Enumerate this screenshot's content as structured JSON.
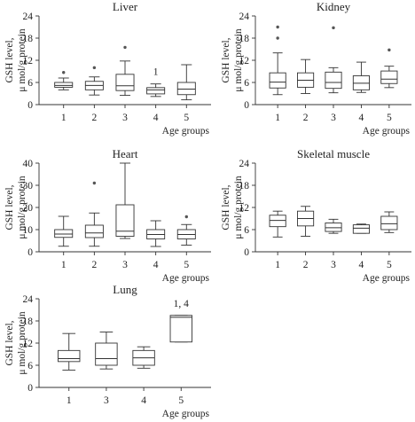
{
  "chart_data": [
    {
      "type": "box",
      "title": "Liver",
      "ylabel": "GSH level,",
      "ylabel2": "μ mol/g protein",
      "xlabel": "Age groups",
      "ylim": [
        0,
        24
      ],
      "yticks": [
        "0",
        "6",
        "12",
        "18",
        "24"
      ],
      "categories": [
        "1",
        "2",
        "3",
        "4",
        "5"
      ],
      "boxes": [
        {
          "min": 4,
          "q1": 4.7,
          "median": 5.2,
          "q3": 6,
          "max": 7.2,
          "outliers": [
            8.7
          ]
        },
        {
          "min": 2.6,
          "q1": 4,
          "median": 5.2,
          "q3": 6.3,
          "max": 7.5,
          "outliers": [
            10
          ]
        },
        {
          "min": 2.5,
          "q1": 3.8,
          "median": 5.1,
          "q3": 8.2,
          "max": 11.8,
          "outliers": [
            15.5
          ]
        },
        {
          "min": 2.2,
          "q1": 2.9,
          "median": 4,
          "q3": 4.6,
          "max": 5.6,
          "outliers": []
        },
        {
          "min": 1.3,
          "q1": 2.7,
          "median": 4.2,
          "q3": 6,
          "max": 10.8,
          "outliers": []
        }
      ],
      "annotations": [
        {
          "text": "1",
          "category": "4"
        }
      ]
    },
    {
      "type": "box",
      "title": "Kidney",
      "ylabel": "GSH level,",
      "ylabel2": "μ mol/g protein",
      "xlabel": "Age groups",
      "ylim": [
        0,
        24
      ],
      "yticks": [
        "0",
        "6",
        "12",
        "18",
        "24"
      ],
      "categories": [
        "1",
        "2",
        "3",
        "4",
        "5"
      ],
      "boxes": [
        {
          "min": 2.7,
          "q1": 4.5,
          "median": 6.1,
          "q3": 8.6,
          "max": 14,
          "outliers": [
            18,
            21
          ]
        },
        {
          "min": 3,
          "q1": 4.7,
          "median": 6.6,
          "q3": 8.6,
          "max": 12.2,
          "outliers": []
        },
        {
          "min": 3.2,
          "q1": 4.4,
          "median": 6,
          "q3": 8.8,
          "max": 10,
          "outliers": [
            20.8
          ]
        },
        {
          "min": 3.3,
          "q1": 4,
          "median": 5.8,
          "q3": 7.8,
          "max": 11.5,
          "outliers": []
        },
        {
          "min": 4.6,
          "q1": 5.7,
          "median": 6.9,
          "q3": 9.1,
          "max": 10.4,
          "outliers": [
            14.8
          ]
        }
      ]
    },
    {
      "type": "box",
      "title": "Heart",
      "ylabel": "GSH level,",
      "ylabel2": "μ mol/g protein",
      "xlabel": "Age groups",
      "ylim": [
        0,
        40
      ],
      "yticks": [
        "0",
        "10",
        "20",
        "30",
        "40"
      ],
      "categories": [
        "1",
        "2",
        "3",
        "4",
        "5"
      ],
      "boxes": [
        {
          "min": 2.5,
          "q1": 6.5,
          "median": 8,
          "q3": 10,
          "max": 16,
          "outliers": []
        },
        {
          "min": 2.5,
          "q1": 6.4,
          "median": 8.5,
          "q3": 12,
          "max": 17.5,
          "outliers": [
            31
          ]
        },
        {
          "min": 6,
          "q1": 7,
          "median": 9.3,
          "q3": 21.2,
          "max": 40,
          "outliers": []
        },
        {
          "min": 2.4,
          "q1": 5.8,
          "median": 7.8,
          "q3": 10,
          "max": 14,
          "outliers": []
        },
        {
          "min": 3,
          "q1": 5.8,
          "median": 7.8,
          "q3": 10,
          "max": 12.3,
          "outliers": [
            15.8
          ]
        }
      ]
    },
    {
      "type": "box",
      "title": "Skeletal muscle",
      "ylabel": "GSH level,",
      "ylabel2": "μ mol/g protein",
      "xlabel": "Age groups",
      "ylim": [
        0,
        24
      ],
      "yticks": [
        "0",
        "6",
        "12",
        "18",
        "24"
      ],
      "categories": [
        "1",
        "2",
        "3",
        "4",
        "5"
      ],
      "boxes": [
        {
          "min": 4,
          "q1": 6.8,
          "median": 8.5,
          "q3": 9.9,
          "max": 11,
          "outliers": []
        },
        {
          "min": 4.2,
          "q1": 7,
          "median": 9,
          "q3": 11,
          "max": 12.3,
          "outliers": []
        },
        {
          "min": 5,
          "q1": 5.5,
          "median": 6.5,
          "q3": 7.8,
          "max": 8.8,
          "outliers": []
        },
        {
          "min": 5,
          "q1": 5,
          "median": 6.4,
          "q3": 7.3,
          "max": 7.5,
          "outliers": []
        },
        {
          "min": 5.2,
          "q1": 6,
          "median": 7.6,
          "q3": 9.6,
          "max": 10.8,
          "outliers": []
        }
      ]
    },
    {
      "type": "box",
      "title": "Lung",
      "ylabel": "GSH level,",
      "ylabel2": "μ mol/g protein",
      "xlabel": "Age groups",
      "ylim": [
        0,
        24
      ],
      "yticks": [
        "0",
        "6",
        "12",
        "18",
        "24"
      ],
      "categories": [
        "1",
        "3",
        "4",
        "5"
      ],
      "boxes": [
        {
          "min": 4.7,
          "q1": 7,
          "median": 7.8,
          "q3": 10,
          "max": 14.6,
          "outliers": []
        },
        {
          "min": 5,
          "q1": 6,
          "median": 7.8,
          "q3": 12,
          "max": 15,
          "outliers": []
        },
        {
          "min": 5.2,
          "q1": 6,
          "median": 8,
          "q3": 10,
          "max": 11,
          "outliers": []
        },
        {
          "min": 12.3,
          "q1": 12.3,
          "median": 19,
          "q3": 19.5,
          "max": 19.5,
          "outliers": []
        }
      ],
      "annotations": [
        {
          "text": "1, 4",
          "category": "5"
        }
      ]
    }
  ]
}
